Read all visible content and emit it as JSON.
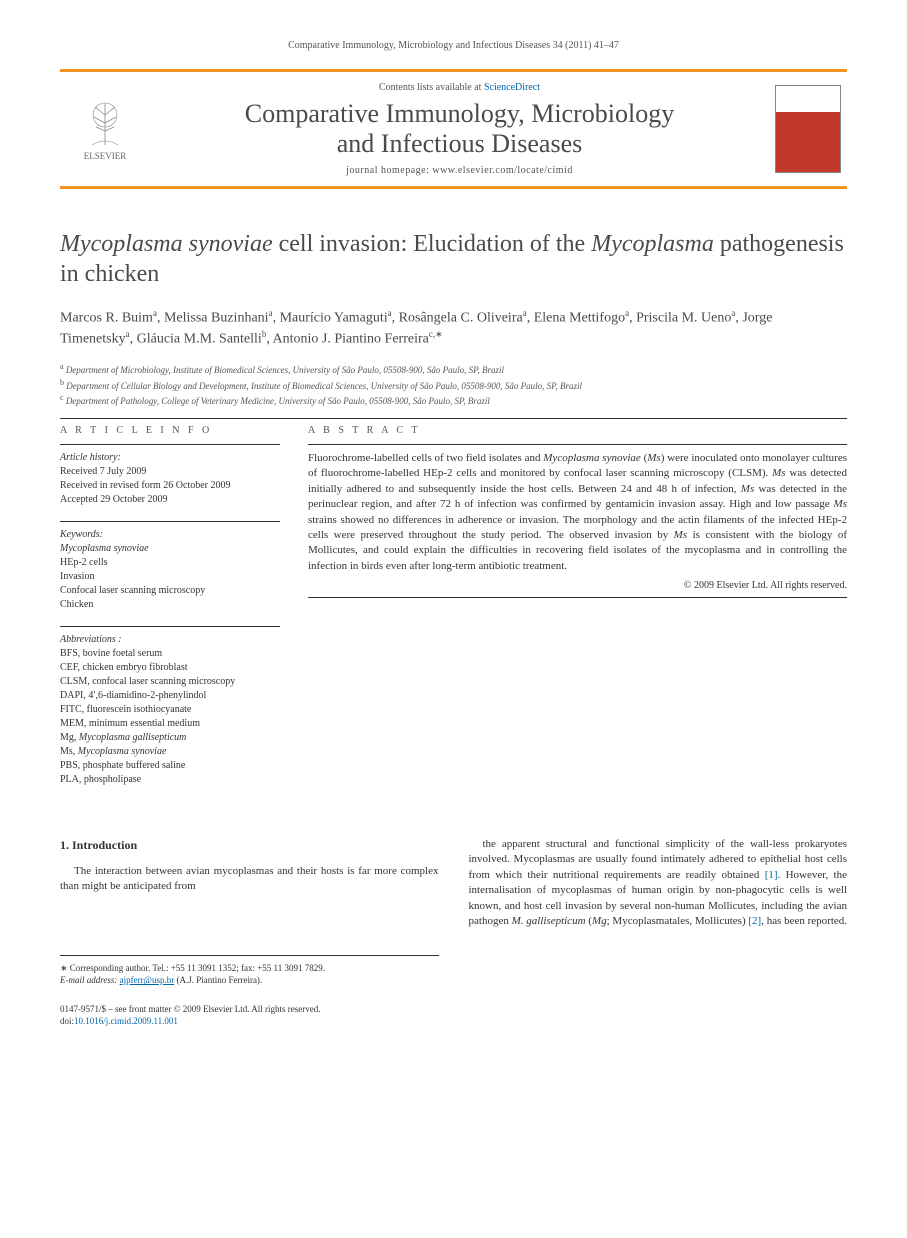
{
  "running_head": "Comparative Immunology, Microbiology and Infectious Diseases 34 (2011) 41–47",
  "header": {
    "contents_prefix": "Contents lists available at ",
    "contents_link": "ScienceDirect",
    "journal_name_line1": "Comparative Immunology, Microbiology",
    "journal_name_line2": "and Infectious Diseases",
    "homepage_label": "journal homepage: www.elsevier.com/locate/cimid",
    "publisher_label": "ELSEVIER"
  },
  "title_parts": {
    "p1": "Mycoplasma synoviae",
    "p2": " cell invasion: Elucidation of the ",
    "p3": "Mycoplasma",
    "p4": " pathogenesis in chicken"
  },
  "authors_html": "Marcos R. Buim<sup>a</sup>, Melissa Buzinhani<sup>a</sup>, Maurício Yamaguti<sup>a</sup>, Rosângela C. Oliveira<sup>a</sup>, Elena Mettifogo<sup>a</sup>, Priscila M. Ueno<sup>a</sup>, Jorge Timenetsky<sup>a</sup>, Gláucia M.M. Santelli<sup>b</sup>, Antonio J. Piantino Ferreira<sup>c,∗</sup>",
  "affiliations": [
    {
      "sup": "a",
      "text": "Department of Microbiology, Institute of Biomedical Sciences, University of São Paulo, 05508-900, São Paulo, SP, Brazil"
    },
    {
      "sup": "b",
      "text": "Department of Cellular Biology and Development, Institute of Biomedical Sciences, University of São Paulo, 05508-900, São Paulo, SP, Brazil"
    },
    {
      "sup": "c",
      "text": "Department of Pathology, College of Veterinary Medicine, University of São Paulo, 05508-900, São Paulo, SP, Brazil"
    }
  ],
  "article_info": {
    "label": "A R T I C L E  I N F O",
    "history_hdr": "Article history:",
    "history": [
      "Received 7 July 2009",
      "Received in revised form 26 October 2009",
      "Accepted 29 October 2009"
    ],
    "keywords_hdr": "Keywords:",
    "keywords": [
      {
        "text": "Mycoplasma synoviae",
        "ital": true
      },
      {
        "text": "HEp-2 cells",
        "ital": false
      },
      {
        "text": "Invasion",
        "ital": false
      },
      {
        "text": "Confocal laser scanning microscopy",
        "ital": false
      },
      {
        "text": "Chicken",
        "ital": false
      }
    ]
  },
  "abstract": {
    "label": "A B S T R A C T",
    "text_parts": [
      {
        "t": "Fluorochrome-labelled cells of two field isolates and ",
        "i": false
      },
      {
        "t": "Mycoplasma synoviae",
        "i": true
      },
      {
        "t": " (",
        "i": false
      },
      {
        "t": "Ms",
        "i": true
      },
      {
        "t": ") were inoculated onto monolayer cultures of fluorochrome-labelled HEp-2 cells and monitored by confocal laser scanning microscopy (CLSM). ",
        "i": false
      },
      {
        "t": "Ms",
        "i": true
      },
      {
        "t": " was detected initially adhered to and subsequently inside the host cells. Between 24 and 48 h of infection, ",
        "i": false
      },
      {
        "t": "Ms",
        "i": true
      },
      {
        "t": " was detected in the perinuclear region, and after 72 h of infection was confirmed by gentamicin invasion assay. High and low passage ",
        "i": false
      },
      {
        "t": "Ms",
        "i": true
      },
      {
        "t": " strains showed no differences in adherence or invasion. The morphology and the actin filaments of the infected HEp-2 cells were preserved throughout the study period. The observed invasion by ",
        "i": false
      },
      {
        "t": "Ms",
        "i": true
      },
      {
        "t": " is consistent with the biology of Mollicutes, and could explain the difficulties in recovering field isolates of the mycoplasma and in controlling the infection in birds even after long-term antibiotic treatment.",
        "i": false
      }
    ],
    "copyright": "© 2009 Elsevier Ltd. All rights reserved."
  },
  "abbreviations": {
    "hdr": "Abbreviations :",
    "items": [
      {
        "t": "BFS, bovine foetal serum"
      },
      {
        "t": "CEF, chicken embryo fibroblast"
      },
      {
        "t": "CLSM, confocal laser scanning microscopy"
      },
      {
        "t": "DAPI, 4′,6-diamidino-2-phenylindol"
      },
      {
        "t": "FITC, fluorescein isothiocyanate"
      },
      {
        "t": "MEM, minimum essential medium"
      },
      {
        "t": "Mg, Mycoplasma gallisepticum",
        "ital_from": 4
      },
      {
        "t": "Ms, Mycoplasma synoviae",
        "ital_from": 4
      },
      {
        "t": "PBS, phosphate buffered saline"
      },
      {
        "t": "PLA, phospholipase"
      }
    ]
  },
  "intro": {
    "heading": "1. Introduction",
    "col1_p1": "The interaction between avian mycoplasmas and their hosts is far more complex than might be anticipated from",
    "col2_parts": [
      {
        "t": "the apparent structural and functional simplicity of the wall-less prokaryotes involved. Mycoplasmas are usually found intimately adhered to epithelial host cells from which their nutritional requirements are readily obtained ",
        "i": false
      },
      {
        "t": "[1]",
        "i": false,
        "link": true
      },
      {
        "t": ". However, the internalisation of mycoplasmas of human origin by non-phagocytic cells is well known, and host cell invasion by several non-human Mollicutes, including the avian pathogen ",
        "i": false
      },
      {
        "t": "M. gallisepticum",
        "i": true
      },
      {
        "t": " (",
        "i": false
      },
      {
        "t": "Mg",
        "i": true
      },
      {
        "t": "; Mycoplasmatales, Mollicutes) ",
        "i": false
      },
      {
        "t": "[2]",
        "i": false,
        "link": true
      },
      {
        "t": ", has been reported.",
        "i": false
      }
    ]
  },
  "footnote": {
    "corr": "∗ Corresponding author. Tel.: +55 11 3091 1352; fax: +55 11 3091 7829.",
    "email_label": "E-mail address: ",
    "email": "ajpferr@usp.br",
    "email_tail": " (A.J. Piantino Ferreira)."
  },
  "footer": {
    "line1": "0147-9571/$ – see front matter © 2009 Elsevier Ltd. All rights reserved.",
    "doi_label": "doi:",
    "doi": "10.1016/j.cimid.2009.11.001"
  },
  "colors": {
    "accent": "#f7941e",
    "link": "#0066aa"
  }
}
